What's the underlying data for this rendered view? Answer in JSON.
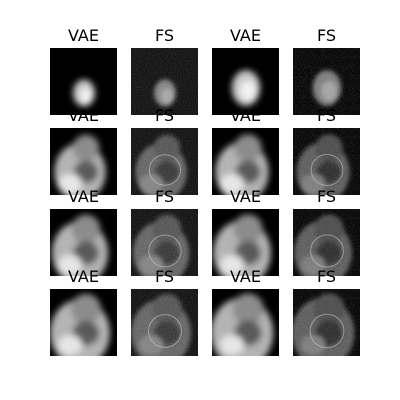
{
  "figure": {
    "background": "#ffffff",
    "rows": 4,
    "cols": 4,
    "panels": [
      {
        "title": "VAE",
        "kind": "vae",
        "stage": 0
      },
      {
        "title": "FS",
        "kind": "fs",
        "stage": 0
      },
      {
        "title": "VAE",
        "kind": "vae",
        "stage": 1
      },
      {
        "title": "FS",
        "kind": "fs",
        "stage": 1
      },
      {
        "title": "VAE",
        "kind": "vae",
        "stage": 2
      },
      {
        "title": "FS",
        "kind": "fs",
        "stage": 2
      },
      {
        "title": "VAE",
        "kind": "vae",
        "stage": 3
      },
      {
        "title": "FS",
        "kind": "fs",
        "stage": 3
      },
      {
        "title": "VAE",
        "kind": "vae",
        "stage": 4
      },
      {
        "title": "FS",
        "kind": "fs",
        "stage": 4
      },
      {
        "title": "VAE",
        "kind": "vae",
        "stage": 5
      },
      {
        "title": "FS",
        "kind": "fs",
        "stage": 5
      },
      {
        "title": "VAE",
        "kind": "vae",
        "stage": 6
      },
      {
        "title": "FS",
        "kind": "fs",
        "stage": 6
      },
      {
        "title": "VAE",
        "kind": "vae",
        "stage": 7
      },
      {
        "title": "FS",
        "kind": "fs",
        "stage": 7
      }
    ]
  }
}
